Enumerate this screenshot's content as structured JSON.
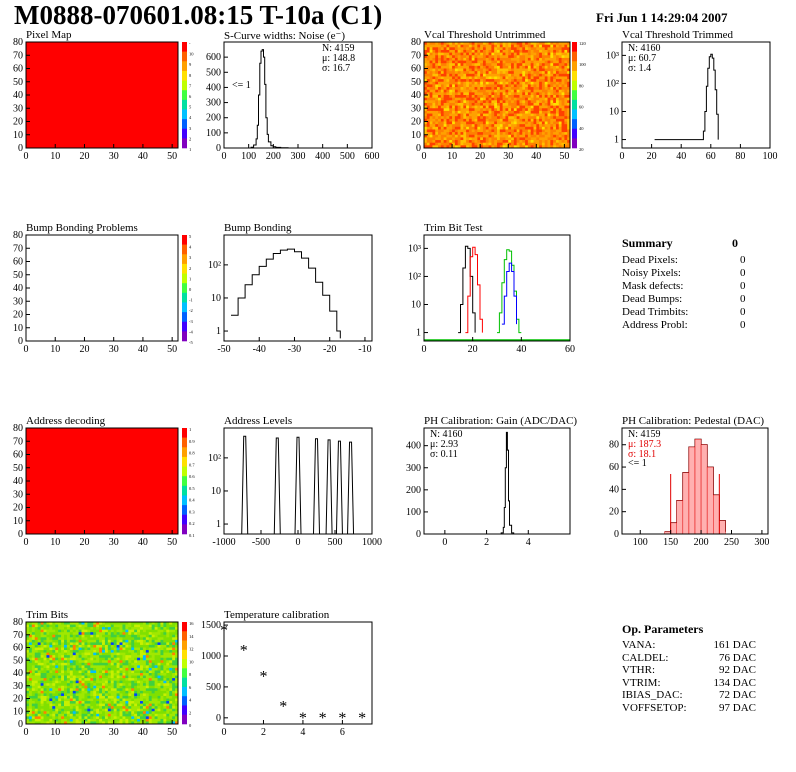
{
  "header": {
    "title": "M0888-070601.08:15 T-10a (C1)",
    "date": "Fri Jun  1 14:29:04 2007"
  },
  "colors": {
    "red": "#ff0000",
    "green_line": "#00c000",
    "blue_line": "#0000ff",
    "stat_red": "#e00000"
  },
  "chart_data": [
    {
      "type": "heatmap",
      "title": "Pixel Map",
      "xticks": [
        "0",
        "10",
        "20",
        "30",
        "40",
        "50"
      ],
      "yticks": [
        "0",
        "10",
        "20",
        "30",
        "40",
        "50",
        "60",
        "70",
        "80"
      ],
      "xlim": [
        0,
        52
      ],
      "ylim": [
        0,
        80
      ],
      "fill": "uniform-red",
      "zscale": [
        "-",
        "10",
        "9",
        "8",
        "7",
        "6",
        "5",
        "4",
        "3",
        "2",
        "1"
      ]
    },
    {
      "type": "line",
      "title": "S-Curve widths: Noise (e⁻)",
      "xticks": [
        "0",
        "100",
        "200",
        "300",
        "400",
        "500",
        "600"
      ],
      "yticks": [
        "0",
        "100",
        "200",
        "300",
        "400",
        "500",
        "600"
      ],
      "xlim": [
        0,
        600
      ],
      "ylim": [
        0,
        700
      ],
      "x": [
        100,
        110,
        120,
        130,
        135,
        140,
        145,
        150,
        155,
        160,
        165,
        170,
        175,
        180,
        190,
        200,
        210,
        230,
        260
      ],
      "y": [
        0,
        5,
        20,
        60,
        150,
        350,
        560,
        640,
        650,
        600,
        420,
        200,
        90,
        40,
        15,
        8,
        4,
        2,
        0
      ],
      "stats": {
        "N": "N: 4159",
        "mu": "μ: 148.8",
        "sigma": "σ: 16.7",
        "underflow": "<= 1"
      }
    },
    {
      "type": "heatmap",
      "title": "Vcal Threshold Untrimmed",
      "xticks": [
        "0",
        "10",
        "20",
        "30",
        "40",
        "50"
      ],
      "yticks": [
        "0",
        "10",
        "20",
        "30",
        "40",
        "50",
        "60",
        "70",
        "80"
      ],
      "xlim": [
        0,
        52
      ],
      "ylim": [
        0,
        80
      ],
      "fill": "orange-noise",
      "zscale": [
        "120",
        "100",
        "80",
        "60",
        "40",
        "20"
      ]
    },
    {
      "type": "line",
      "title": "Vcal Threshold Trimmed",
      "log": true,
      "xticks": [
        "0",
        "20",
        "40",
        "60",
        "80",
        "100"
      ],
      "yticks": [
        "1",
        "10",
        "10²",
        "10³"
      ],
      "xlim": [
        0,
        100
      ],
      "ylim": [
        0.5,
        3000
      ],
      "x": [
        22,
        22.5,
        55,
        56,
        57,
        58,
        59,
        60,
        61,
        62,
        63,
        64,
        65
      ],
      "y": [
        1,
        1,
        2,
        10,
        80,
        350,
        900,
        1100,
        800,
        300,
        60,
        8,
        1
      ],
      "stats": {
        "N": "N: 4160",
        "mu": "μ: 60.7",
        "sigma": "σ: 1.4"
      }
    },
    {
      "type": "heatmap",
      "title": "Bump Bonding Problems",
      "xticks": [
        "0",
        "10",
        "20",
        "30",
        "40",
        "50"
      ],
      "yticks": [
        "0",
        "10",
        "20",
        "30",
        "40",
        "50",
        "60",
        "70",
        "80"
      ],
      "xlim": [
        0,
        52
      ],
      "ylim": [
        0,
        80
      ],
      "fill": "empty",
      "zscale": [
        "5",
        "4",
        "3",
        "2",
        "1",
        "0",
        "-1",
        "-2",
        "-3",
        "-4",
        "-5"
      ]
    },
    {
      "type": "line",
      "title": "Bump Bonding",
      "log": true,
      "xticks": [
        "-50",
        "-40",
        "-30",
        "-20",
        "-10"
      ],
      "yticks": [
        "1",
        "10",
        "10²"
      ],
      "xlim": [
        -50,
        -8
      ],
      "ylim": [
        0.5,
        800
      ],
      "x": [
        -48,
        -46,
        -44,
        -42,
        -40,
        -38,
        -36,
        -34,
        -32,
        -30,
        -28,
        -26,
        -24,
        -22,
        -20,
        -18,
        -17
      ],
      "y": [
        3,
        10,
        25,
        50,
        90,
        150,
        220,
        280,
        300,
        250,
        160,
        80,
        30,
        12,
        4,
        1,
        0.6
      ]
    },
    {
      "type": "line",
      "title": "Trim Bit Test",
      "log": true,
      "xticks": [
        "0",
        "20",
        "40",
        "60"
      ],
      "yticks": [
        "1",
        "10",
        "10²",
        "10³"
      ],
      "xlim": [
        0,
        60
      ],
      "ylim": [
        0.5,
        3000
      ],
      "series": [
        {
          "name": "",
          "color": "#000000",
          "x": [
            14,
            15,
            16,
            17,
            18,
            19,
            20,
            21
          ],
          "y": [
            1,
            10,
            200,
            1200,
            1000,
            100,
            5,
            1
          ]
        },
        {
          "name": "",
          "color": "#ff0000",
          "x": [
            17,
            18,
            19,
            20,
            21,
            22,
            23,
            24
          ],
          "y": [
            1,
            20,
            500,
            1100,
            600,
            50,
            3,
            1
          ]
        },
        {
          "name": "",
          "color": "#00c000",
          "x": [
            30,
            31,
            32,
            33,
            34,
            35,
            36,
            37,
            38,
            39,
            40
          ],
          "y": [
            1,
            5,
            60,
            400,
            900,
            800,
            250,
            30,
            3,
            1,
            1
          ]
        },
        {
          "name": "",
          "color": "#0000ff",
          "x": [
            32,
            33,
            34,
            35,
            36,
            37,
            38
          ],
          "y": [
            2,
            20,
            150,
            300,
            150,
            20,
            2
          ]
        }
      ]
    },
    {
      "type": "heatmap",
      "title": "Address decoding",
      "xticks": [
        "0",
        "10",
        "20",
        "30",
        "40",
        "50"
      ],
      "yticks": [
        "0",
        "10",
        "20",
        "30",
        "40",
        "50",
        "60",
        "70",
        "80"
      ],
      "xlim": [
        0,
        52
      ],
      "ylim": [
        0,
        80
      ],
      "fill": "uniform-red",
      "zscale": [
        "1",
        "0.9",
        "0.8",
        "0.7",
        "0.6",
        "0.5",
        "0.4",
        "0.3",
        "0.2",
        "0.1"
      ]
    },
    {
      "type": "line",
      "title": "Address Levels",
      "log": true,
      "xticks": [
        "-1000",
        "-500",
        "0",
        "500",
        "1000"
      ],
      "yticks": [
        "1",
        "10",
        "10²"
      ],
      "xlim": [
        -1000,
        1000
      ],
      "ylim": [
        0.5,
        800
      ],
      "peaks": [
        -720,
        -280,
        0,
        250,
        420,
        560,
        710
      ],
      "peak_heights": [
        450,
        400,
        420,
        380,
        350,
        320,
        300
      ]
    },
    {
      "type": "line",
      "title": "PH Calibration: Gain (ADC/DAC)",
      "xticks": [
        "0",
        "2",
        "4"
      ],
      "yticks": [
        "0",
        "100",
        "200",
        "300",
        "400"
      ],
      "xlim": [
        -1,
        6
      ],
      "ylim": [
        0,
        480
      ],
      "x": [
        2.6,
        2.7,
        2.8,
        2.85,
        2.9,
        2.95,
        3.0,
        3.05,
        3.1,
        3.2,
        3.3
      ],
      "y": [
        0,
        5,
        30,
        120,
        300,
        460,
        380,
        150,
        40,
        5,
        0
      ],
      "stats": {
        "N": "N: 4160",
        "mu": "μ: 2.93",
        "sigma": "σ: 0.11"
      }
    },
    {
      "type": "line",
      "title": "PH Calibration: Pedestal (DAC)",
      "xticks": [
        "100",
        "150",
        "200",
        "250",
        "300"
      ],
      "yticks": [
        "0",
        "20",
        "40",
        "60",
        "80"
      ],
      "xlim": [
        70,
        310
      ],
      "ylim": [
        0,
        95
      ],
      "x": [
        140,
        150,
        160,
        170,
        180,
        190,
        200,
        210,
        220,
        230,
        240
      ],
      "y": [
        2,
        10,
        30,
        55,
        78,
        85,
        80,
        60,
        35,
        12,
        2
      ],
      "stats": {
        "N": "N: 4159",
        "mu": "μ: 187.3",
        "sigma": "σ: 18.1",
        "underflow": "<= 1"
      }
    },
    {
      "type": "heatmap",
      "title": "Trim Bits",
      "xticks": [
        "0",
        "10",
        "20",
        "30",
        "40",
        "50"
      ],
      "yticks": [
        "0",
        "10",
        "20",
        "30",
        "40",
        "50",
        "60",
        "70",
        "80"
      ],
      "xlim": [
        0,
        52
      ],
      "ylim": [
        0,
        80
      ],
      "fill": "green-noise",
      "zscale": [
        "16",
        "14",
        "12",
        "10",
        "8",
        "6",
        "4",
        "2",
        "0"
      ]
    },
    {
      "type": "scatter",
      "title": "Temperature calibration",
      "xticks": [
        "0",
        "2",
        "4",
        "6"
      ],
      "yticks": [
        "0",
        "500",
        "1000",
        "1500"
      ],
      "xlim": [
        0,
        7.5
      ],
      "ylim": [
        -100,
        1550
      ],
      "x": [
        0,
        1,
        2,
        3,
        4,
        5,
        6,
        7
      ],
      "y": [
        1410,
        1090,
        670,
        180,
        0,
        0,
        0,
        0
      ]
    }
  ],
  "summary": {
    "heading": "Summary",
    "heading_value": "0",
    "rows": [
      {
        "label": "Dead Pixels:",
        "value": "0"
      },
      {
        "label": "Noisy Pixels:",
        "value": "0"
      },
      {
        "label": "Mask defects:",
        "value": "0"
      },
      {
        "label": "Dead Bumps:",
        "value": "0"
      },
      {
        "label": "Dead Trimbits:",
        "value": "0"
      },
      {
        "label": "Address Probl:",
        "value": "0"
      }
    ]
  },
  "op_params": {
    "heading": "Op. Parameters",
    "rows": [
      {
        "label": "VANA:",
        "value": "161 DAC"
      },
      {
        "label": "CALDEL:",
        "value": "76 DAC"
      },
      {
        "label": "VTHR:",
        "value": "92 DAC"
      },
      {
        "label": "VTRIM:",
        "value": "134 DAC"
      },
      {
        "label": "IBIAS_DAC:",
        "value": "72 DAC"
      },
      {
        "label": "VOFFSETOP:",
        "value": "97 DAC"
      }
    ]
  }
}
